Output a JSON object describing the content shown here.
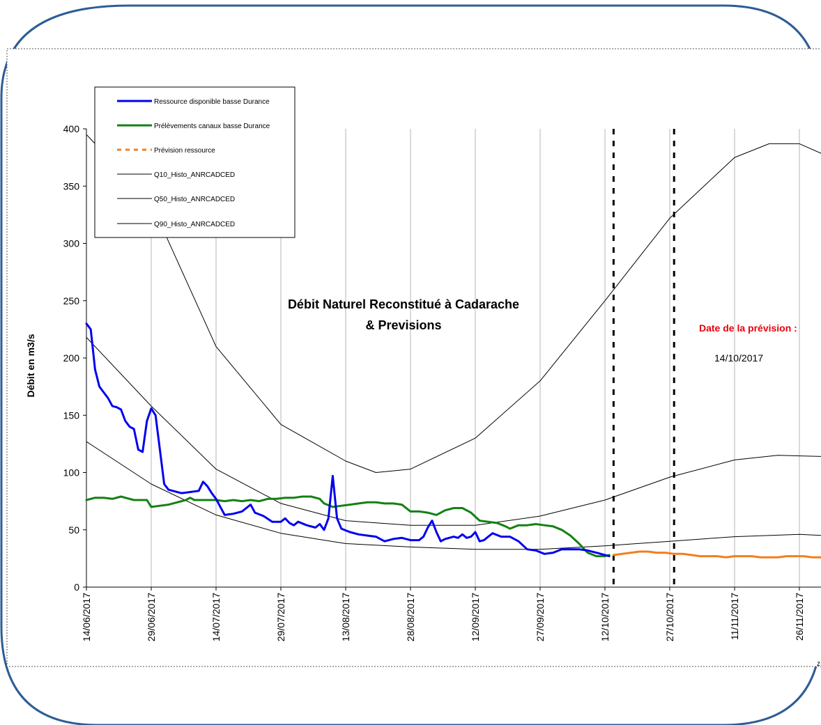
{
  "chart_data": {
    "type": "line",
    "title": "Débit Naturel Reconstitué à Cadarache",
    "subtitle": "& Previsions",
    "ylabel": "Débit en m3/s",
    "xlabel": "",
    "ylim": [
      0,
      400
    ],
    "y_ticks": [
      "0",
      "50",
      "100",
      "150",
      "200",
      "250",
      "300",
      "350",
      "400"
    ],
    "x_range": [
      "2017-06-14",
      "2017-12-02"
    ],
    "x_ticks": [
      "14/06/2017",
      "29/06/2017",
      "14/07/2017",
      "29/07/2017",
      "13/08/2017",
      "28/08/2017",
      "12/09/2017",
      "27/09/2017",
      "12/10/2017",
      "27/10/2017",
      "11/11/2017",
      "26/11/2017"
    ],
    "x_tick_dates": [
      "2017-06-14",
      "2017-06-29",
      "2017-07-14",
      "2017-07-29",
      "2017-08-13",
      "2017-08-28",
      "2017-09-12",
      "2017-09-27",
      "2017-10-12",
      "2017-10-27",
      "2017-11-11",
      "2017-11-26"
    ],
    "grid": "vertical",
    "legend_position": "top-left",
    "annotation": {
      "label": "Date de la prévision :",
      "date": "14/10/2017",
      "label_color": "#e8000b"
    },
    "vertical_markers": [
      "2017-10-14",
      "2017-10-28"
    ],
    "series": [
      {
        "name": "Ressource disponible basse Durance",
        "color": "#0000ee",
        "style": "solid",
        "width": 3,
        "points": [
          [
            "2017-06-14",
            230
          ],
          [
            "2017-06-15",
            225
          ],
          [
            "2017-06-16",
            190
          ],
          [
            "2017-06-17",
            175
          ],
          [
            "2017-06-18",
            170
          ],
          [
            "2017-06-19",
            165
          ],
          [
            "2017-06-20",
            158
          ],
          [
            "2017-06-21",
            157
          ],
          [
            "2017-06-22",
            155
          ],
          [
            "2017-06-23",
            145
          ],
          [
            "2017-06-24",
            140
          ],
          [
            "2017-06-25",
            138
          ],
          [
            "2017-06-26",
            120
          ],
          [
            "2017-06-27",
            118
          ],
          [
            "2017-06-28",
            145
          ],
          [
            "2017-06-29",
            156
          ],
          [
            "2017-06-30",
            150
          ],
          [
            "2017-07-01",
            120
          ],
          [
            "2017-07-02",
            90
          ],
          [
            "2017-07-03",
            85
          ],
          [
            "2017-07-04",
            84
          ],
          [
            "2017-07-06",
            82
          ],
          [
            "2017-07-08",
            83
          ],
          [
            "2017-07-10",
            84
          ],
          [
            "2017-07-11",
            92
          ],
          [
            "2017-07-12",
            88
          ],
          [
            "2017-07-13",
            82
          ],
          [
            "2017-07-14",
            77
          ],
          [
            "2017-07-15",
            70
          ],
          [
            "2017-07-16",
            63
          ],
          [
            "2017-07-18",
            64
          ],
          [
            "2017-07-20",
            66
          ],
          [
            "2017-07-22",
            72
          ],
          [
            "2017-07-23",
            65
          ],
          [
            "2017-07-25",
            62
          ],
          [
            "2017-07-27",
            57
          ],
          [
            "2017-07-29",
            57
          ],
          [
            "2017-07-30",
            60
          ],
          [
            "2017-07-31",
            56
          ],
          [
            "2017-08-01",
            54
          ],
          [
            "2017-08-02",
            57
          ],
          [
            "2017-08-04",
            54
          ],
          [
            "2017-08-06",
            52
          ],
          [
            "2017-08-07",
            55
          ],
          [
            "2017-08-08",
            50
          ],
          [
            "2017-08-09",
            60
          ],
          [
            "2017-08-10",
            97
          ],
          [
            "2017-08-11",
            60
          ],
          [
            "2017-08-12",
            51
          ],
          [
            "2017-08-14",
            48
          ],
          [
            "2017-08-16",
            46
          ],
          [
            "2017-08-18",
            45
          ],
          [
            "2017-08-20",
            44
          ],
          [
            "2017-08-22",
            40
          ],
          [
            "2017-08-24",
            42
          ],
          [
            "2017-08-26",
            43
          ],
          [
            "2017-08-28",
            41
          ],
          [
            "2017-08-30",
            41
          ],
          [
            "2017-08-31",
            44
          ],
          [
            "2017-09-01",
            52
          ],
          [
            "2017-09-02",
            58
          ],
          [
            "2017-09-03",
            48
          ],
          [
            "2017-09-04",
            40
          ],
          [
            "2017-09-05",
            42
          ],
          [
            "2017-09-07",
            44
          ],
          [
            "2017-09-08",
            43
          ],
          [
            "2017-09-09",
            46
          ],
          [
            "2017-09-10",
            43
          ],
          [
            "2017-09-11",
            44
          ],
          [
            "2017-09-12",
            48
          ],
          [
            "2017-09-13",
            40
          ],
          [
            "2017-09-14",
            41
          ],
          [
            "2017-09-15",
            44
          ],
          [
            "2017-09-16",
            47
          ],
          [
            "2017-09-18",
            44
          ],
          [
            "2017-09-20",
            44
          ],
          [
            "2017-09-22",
            40
          ],
          [
            "2017-09-24",
            33
          ],
          [
            "2017-09-26",
            32
          ],
          [
            "2017-09-28",
            29
          ],
          [
            "2017-09-30",
            30
          ],
          [
            "2017-10-02",
            33
          ],
          [
            "2017-10-04",
            33
          ],
          [
            "2017-10-06",
            33
          ],
          [
            "2017-10-08",
            32
          ],
          [
            "2017-10-10",
            30
          ],
          [
            "2017-10-12",
            28
          ],
          [
            "2017-10-13",
            27
          ]
        ]
      },
      {
        "name": "Prélèvements canaux basse Durance",
        "color": "#148014",
        "style": "solid",
        "width": 3,
        "points": [
          [
            "2017-06-14",
            76
          ],
          [
            "2017-06-16",
            78
          ],
          [
            "2017-06-18",
            78
          ],
          [
            "2017-06-20",
            77
          ],
          [
            "2017-06-22",
            79
          ],
          [
            "2017-06-23",
            78
          ],
          [
            "2017-06-25",
            76
          ],
          [
            "2017-06-27",
            76
          ],
          [
            "2017-06-28",
            76
          ],
          [
            "2017-06-29",
            70
          ],
          [
            "2017-07-01",
            71
          ],
          [
            "2017-07-03",
            72
          ],
          [
            "2017-07-05",
            74
          ],
          [
            "2017-07-07",
            76
          ],
          [
            "2017-07-08",
            78
          ],
          [
            "2017-07-09",
            76
          ],
          [
            "2017-07-11",
            76
          ],
          [
            "2017-07-14",
            76
          ],
          [
            "2017-07-16",
            75
          ],
          [
            "2017-07-18",
            76
          ],
          [
            "2017-07-20",
            75
          ],
          [
            "2017-07-22",
            76
          ],
          [
            "2017-07-24",
            75
          ],
          [
            "2017-07-26",
            77
          ],
          [
            "2017-07-28",
            77
          ],
          [
            "2017-07-30",
            78
          ],
          [
            "2017-08-01",
            78
          ],
          [
            "2017-08-03",
            79
          ],
          [
            "2017-08-05",
            79
          ],
          [
            "2017-08-07",
            77
          ],
          [
            "2017-08-08",
            73
          ],
          [
            "2017-08-10",
            70
          ],
          [
            "2017-08-12",
            71
          ],
          [
            "2017-08-14",
            72
          ],
          [
            "2017-08-16",
            73
          ],
          [
            "2017-08-18",
            74
          ],
          [
            "2017-08-20",
            74
          ],
          [
            "2017-08-22",
            73
          ],
          [
            "2017-08-24",
            73
          ],
          [
            "2017-08-26",
            72
          ],
          [
            "2017-08-28",
            66
          ],
          [
            "2017-08-30",
            66
          ],
          [
            "2017-09-01",
            65
          ],
          [
            "2017-09-03",
            63
          ],
          [
            "2017-09-05",
            67
          ],
          [
            "2017-09-07",
            69
          ],
          [
            "2017-09-09",
            69
          ],
          [
            "2017-09-11",
            65
          ],
          [
            "2017-09-13",
            58
          ],
          [
            "2017-09-15",
            57
          ],
          [
            "2017-09-17",
            56
          ],
          [
            "2017-09-19",
            53
          ],
          [
            "2017-09-20",
            51
          ],
          [
            "2017-09-22",
            54
          ],
          [
            "2017-09-24",
            54
          ],
          [
            "2017-09-26",
            55
          ],
          [
            "2017-09-28",
            54
          ],
          [
            "2017-09-30",
            53
          ],
          [
            "2017-10-02",
            50
          ],
          [
            "2017-10-04",
            45
          ],
          [
            "2017-10-06",
            38
          ],
          [
            "2017-10-08",
            30
          ],
          [
            "2017-10-10",
            27
          ],
          [
            "2017-10-12",
            27
          ],
          [
            "2017-10-13",
            28
          ]
        ]
      },
      {
        "name": "Prévision ressource",
        "color": "#f07f20",
        "style": "dashed",
        "width": 3,
        "points": [
          [
            "2017-10-14",
            28
          ],
          [
            "2017-10-16",
            29
          ],
          [
            "2017-10-18",
            30
          ],
          [
            "2017-10-20",
            31
          ],
          [
            "2017-10-22",
            31
          ],
          [
            "2017-10-24",
            30
          ],
          [
            "2017-10-26",
            30
          ],
          [
            "2017-10-28",
            29
          ],
          [
            "2017-10-30",
            29
          ],
          [
            "2017-11-01",
            28
          ],
          [
            "2017-11-03",
            27
          ],
          [
            "2017-11-05",
            27
          ],
          [
            "2017-11-07",
            27
          ],
          [
            "2017-11-09",
            26
          ],
          [
            "2017-11-11",
            27
          ],
          [
            "2017-11-13",
            27
          ],
          [
            "2017-11-15",
            27
          ],
          [
            "2017-11-17",
            26
          ],
          [
            "2017-11-19",
            26
          ],
          [
            "2017-11-21",
            26
          ],
          [
            "2017-11-23",
            27
          ],
          [
            "2017-11-25",
            27
          ],
          [
            "2017-11-27",
            27
          ],
          [
            "2017-11-29",
            26
          ],
          [
            "2017-12-02",
            26
          ]
        ]
      },
      {
        "name": "Q10_Histo_ANRCADCED",
        "color": "#000000",
        "style": "solid",
        "width": 1,
        "points": [
          [
            "2017-06-14",
            395
          ],
          [
            "2017-06-29",
            335
          ],
          [
            "2017-07-14",
            210
          ],
          [
            "2017-07-29",
            142
          ],
          [
            "2017-08-13",
            110
          ],
          [
            "2017-08-20",
            100
          ],
          [
            "2017-08-28",
            103
          ],
          [
            "2017-09-12",
            130
          ],
          [
            "2017-09-27",
            180
          ],
          [
            "2017-10-12",
            250
          ],
          [
            "2017-10-27",
            322
          ],
          [
            "2017-11-11",
            375
          ],
          [
            "2017-11-19",
            387
          ],
          [
            "2017-11-26",
            387
          ],
          [
            "2017-12-02",
            377
          ]
        ]
      },
      {
        "name": "Q50_Histo_ANRCADCED",
        "color": "#000000",
        "style": "solid",
        "width": 1,
        "points": [
          [
            "2017-06-14",
            218
          ],
          [
            "2017-06-29",
            158
          ],
          [
            "2017-07-14",
            103
          ],
          [
            "2017-07-29",
            73
          ],
          [
            "2017-08-13",
            58
          ],
          [
            "2017-08-28",
            54
          ],
          [
            "2017-09-12",
            54
          ],
          [
            "2017-09-27",
            62
          ],
          [
            "2017-10-12",
            76
          ],
          [
            "2017-10-27",
            96
          ],
          [
            "2017-11-11",
            111
          ],
          [
            "2017-11-21",
            115
          ],
          [
            "2017-12-02",
            114
          ]
        ]
      },
      {
        "name": "Q90_Histo_ANRCADCED",
        "color": "#000000",
        "style": "solid",
        "width": 1,
        "points": [
          [
            "2017-06-14",
            127
          ],
          [
            "2017-06-29",
            90
          ],
          [
            "2017-07-14",
            63
          ],
          [
            "2017-07-29",
            47
          ],
          [
            "2017-08-13",
            38
          ],
          [
            "2017-08-28",
            35
          ],
          [
            "2017-09-12",
            33
          ],
          [
            "2017-09-27",
            33
          ],
          [
            "2017-10-12",
            36
          ],
          [
            "2017-10-27",
            40
          ],
          [
            "2017-11-11",
            44
          ],
          [
            "2017-11-26",
            46
          ],
          [
            "2017-12-02",
            45
          ]
        ]
      }
    ]
  },
  "colors": {
    "frame_blue": "#2e5d95",
    "axis": "#000000",
    "grid": "#b4b4b4"
  }
}
